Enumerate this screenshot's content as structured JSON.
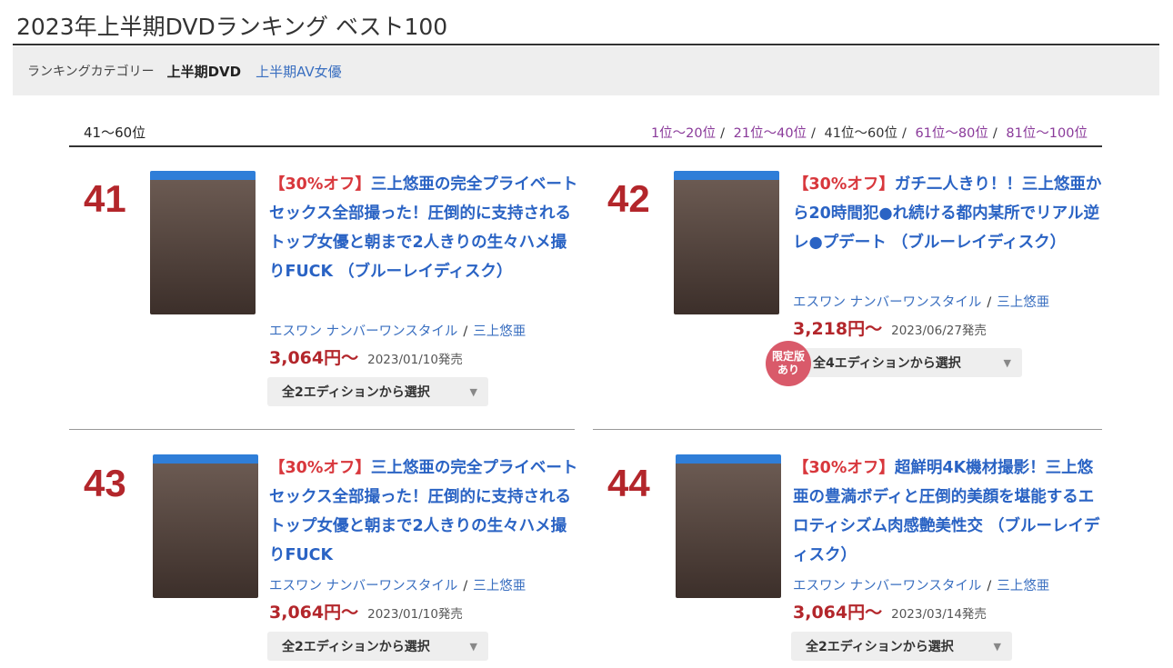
{
  "page_title": "2023年上半期DVDランキング ベスト100",
  "category": {
    "label": "ランキングカテゴリー",
    "current": "上半期DVD",
    "link": "上半期AV女優"
  },
  "range_label": "41〜60位",
  "pager": [
    {
      "label": "1位〜20位",
      "active": false
    },
    {
      "label": "21位〜40位",
      "active": false
    },
    {
      "label": "41位〜60位",
      "active": true
    },
    {
      "label": "61位〜80位",
      "active": false
    },
    {
      "label": "81位〜100位",
      "active": false
    }
  ],
  "items": [
    {
      "rank": "41",
      "discount": "【30%オフ】",
      "title": "三上悠亜の完全プライベートセックス全部撮った！圧倒的に支持されるトップ女優と朝まで2人きりの生々ハメ撮りFUCK （ブルーレイディスク）",
      "maker": "エスワン ナンバーワンスタイル",
      "actress": "三上悠亜",
      "price": "3,064円〜",
      "date": "2023/01/10発売",
      "edition": "全2エディションから選択"
    },
    {
      "rank": "42",
      "discount": "【30%オフ】",
      "title": "ガチ二人きり！！三上悠亜から20時間犯●れ続ける都内某所でリアル逆レ●プデート （ブルーレイディスク）",
      "maker": "エスワン ナンバーワンスタイル",
      "actress": "三上悠亜",
      "price": "3,218円〜",
      "date": "2023/06/27発売",
      "edition": "全4エディションから選択",
      "badge": "限定版あり"
    },
    {
      "rank": "43",
      "discount": "【30%オフ】",
      "title": "三上悠亜の完全プライベートセックス全部撮った！圧倒的に支持されるトップ女優と朝まで2人きりの生々ハメ撮りFUCK",
      "maker": "エスワン ナンバーワンスタイル",
      "actress": "三上悠亜",
      "price": "3,064円〜",
      "date": "2023/01/10発売",
      "edition": "全2エディションから選択"
    },
    {
      "rank": "44",
      "discount": "【30%オフ】",
      "title": "超鮮明4K機材撮影！三上悠亜の豊満ボディと圧倒的美顔を堪能するエロティシズム肉感艶美性交 （ブルーレイディスク）",
      "maker": "エスワン ナンバーワンスタイル",
      "actress": "三上悠亜",
      "price": "3,064円〜",
      "date": "2023/03/14発売",
      "edition": "全2エディションから選択"
    }
  ]
}
